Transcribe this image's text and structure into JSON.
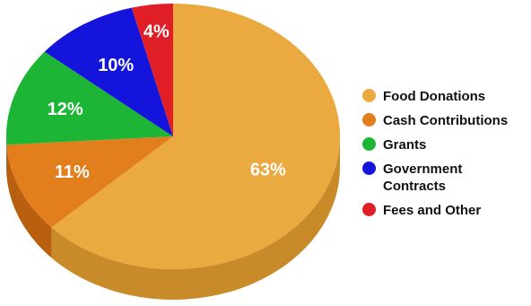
{
  "chart_data": {
    "type": "pie",
    "categories": [
      "Food Donations",
      "Cash Contributions",
      "Grants",
      "Government Contracts",
      "Fees and Other"
    ],
    "values": [
      63,
      11,
      12,
      10,
      4
    ],
    "labels": [
      "63%",
      "11%",
      "12%",
      "10%",
      "4%"
    ],
    "colors": [
      "#EBAA3F",
      "#E37E1C",
      "#1DB535",
      "#1414DC",
      "#E01E25"
    ],
    "side_colors": [
      "#C98A2A",
      "#B85F10",
      "#148A25",
      "#0E0EA8",
      "#A81418"
    ],
    "legend_position": "right",
    "style": "3d"
  }
}
